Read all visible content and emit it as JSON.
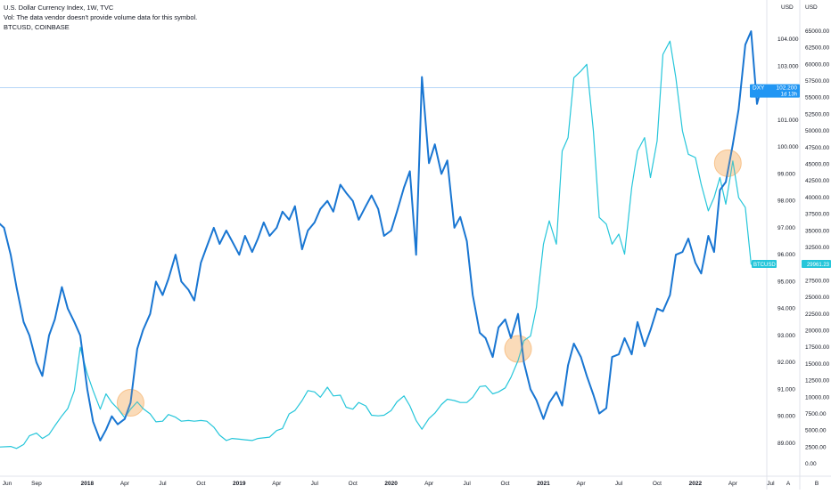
{
  "legend": {
    "line1": "U.S. Dollar Currency Index, 1W, TVC",
    "line2": "Vol: The data vendor doesn't provide volume data for this symbol.",
    "line3": "BTCUSD, COINBASE"
  },
  "colors": {
    "dxy": "#1976d2",
    "btc": "#26c6da",
    "dxy_tag": "#2196f3",
    "btc_tag": "#26c6da",
    "highlight": "#f6b26b",
    "axis_text": "#131722",
    "crosshair": "#9ec9f5"
  },
  "axis_tags": {
    "dxy_name": "DXY",
    "dxy_value": "102.200",
    "dxy_countdown": "1d 13h",
    "btc_name": "BTCUSD",
    "btc_value": "29961.23"
  },
  "scale_buttons": [
    "A",
    "B"
  ],
  "chart_data": {
    "type": "line",
    "title": "U.S. Dollar Currency Index, 1W, TVC",
    "x_tick_labels": [
      "Jun",
      "Sep",
      "2018",
      "Apr",
      "Jul",
      "Oct",
      "2019",
      "Apr",
      "Jul",
      "Oct",
      "2020",
      "Apr",
      "Jul",
      "Oct",
      "2021",
      "Apr",
      "Jul",
      "Oct",
      "2022",
      "Apr",
      "Jul"
    ],
    "x_range": [
      "2017-06",
      "2022-07"
    ],
    "axes": {
      "dxy": {
        "unit": "USD",
        "range": [
          88.6,
          104.8
        ],
        "ticks": [
          "104.000",
          "103.000",
          "102.000",
          "101.000",
          "100.000",
          "99.000",
          "98.000",
          "97.000",
          "96.000",
          "95.000",
          "94.000",
          "93.000",
          "92.000",
          "91.000",
          "90.000",
          "89.000"
        ]
      },
      "btc": {
        "unit": "USD",
        "range": [
          -2000,
          67000
        ],
        "ticks": [
          "65000.00",
          "62500.00",
          "60000.00",
          "57500.00",
          "55000.00",
          "52500.00",
          "50000.00",
          "47500.00",
          "45000.00",
          "42500.00",
          "40000.00",
          "37500.00",
          "35000.00",
          "32500.00",
          "30000.00",
          "27500.00",
          "25000.00",
          "22500.00",
          "20000.00",
          "17500.00",
          "15000.00",
          "12500.00",
          "10000.00",
          "7500.00",
          "5000.00",
          "2500.00",
          "0.00"
        ]
      }
    },
    "grid": false,
    "series": [
      {
        "name": "DXY",
        "axis": "dxy",
        "points": [
          [
            "2017-06",
            97.2
          ],
          [
            "2017-06-15",
            97.0
          ],
          [
            "2017-07",
            96.0
          ],
          [
            "2017-07-15",
            94.8
          ],
          [
            "2017-08",
            93.5
          ],
          [
            "2017-08-15",
            93.0
          ],
          [
            "2017-09",
            92.0
          ],
          [
            "2017-09-15",
            91.5
          ],
          [
            "2017-10",
            93.0
          ],
          [
            "2017-10-15",
            93.6
          ],
          [
            "2017-11",
            94.8
          ],
          [
            "2017-11-15",
            94.0
          ],
          [
            "2017-12",
            93.5
          ],
          [
            "2017-12-15",
            93.0
          ],
          [
            "2018-01",
            91.0
          ],
          [
            "2018-01-15",
            89.8
          ],
          [
            "2018-02",
            89.1
          ],
          [
            "2018-02-15",
            89.5
          ],
          [
            "2018-03",
            90.0
          ],
          [
            "2018-03-15",
            89.7
          ],
          [
            "2018-04",
            89.9
          ],
          [
            "2018-04-15",
            90.5
          ],
          [
            "2018-05",
            92.5
          ],
          [
            "2018-05-15",
            93.2
          ],
          [
            "2018-06",
            93.8
          ],
          [
            "2018-06-15",
            95.0
          ],
          [
            "2018-07",
            94.5
          ],
          [
            "2018-07-15",
            95.1
          ],
          [
            "2018-08",
            96.0
          ],
          [
            "2018-08-15",
            95.0
          ],
          [
            "2018-09",
            94.7
          ],
          [
            "2018-09-15",
            94.3
          ],
          [
            "2018-10",
            95.7
          ],
          [
            "2018-10-15",
            96.3
          ],
          [
            "2018-11",
            97.0
          ],
          [
            "2018-11-15",
            96.4
          ],
          [
            "2018-12",
            96.9
          ],
          [
            "2018-12-15",
            96.5
          ],
          [
            "2019-01",
            96.0
          ],
          [
            "2019-01-15",
            96.7
          ],
          [
            "2019-02",
            96.1
          ],
          [
            "2019-02-15",
            96.6
          ],
          [
            "2019-03",
            97.2
          ],
          [
            "2019-03-15",
            96.7
          ],
          [
            "2019-04",
            97.0
          ],
          [
            "2019-04-15",
            97.6
          ],
          [
            "2019-05",
            97.3
          ],
          [
            "2019-05-15",
            97.8
          ],
          [
            "2019-06",
            96.2
          ],
          [
            "2019-06-15",
            96.9
          ],
          [
            "2019-07",
            97.2
          ],
          [
            "2019-07-15",
            97.7
          ],
          [
            "2019-08",
            98.0
          ],
          [
            "2019-08-15",
            97.6
          ],
          [
            "2019-09",
            98.6
          ],
          [
            "2019-09-15",
            98.3
          ],
          [
            "2019-10",
            98.0
          ],
          [
            "2019-10-15",
            97.3
          ],
          [
            "2019-11",
            97.8
          ],
          [
            "2019-11-15",
            98.2
          ],
          [
            "2019-12",
            97.7
          ],
          [
            "2019-12-15",
            96.7
          ],
          [
            "2020-01",
            96.9
          ],
          [
            "2020-01-15",
            97.6
          ],
          [
            "2020-02",
            98.5
          ],
          [
            "2020-02-15",
            99.1
          ],
          [
            "2020-03",
            96.0
          ],
          [
            "2020-03-15",
            102.6
          ],
          [
            "2020-04",
            99.4
          ],
          [
            "2020-04-15",
            100.1
          ],
          [
            "2020-05",
            99.0
          ],
          [
            "2020-05-15",
            99.5
          ],
          [
            "2020-06",
            97.0
          ],
          [
            "2020-06-15",
            97.4
          ],
          [
            "2020-07",
            96.5
          ],
          [
            "2020-07-15",
            94.5
          ],
          [
            "2020-08",
            93.1
          ],
          [
            "2020-08-15",
            92.9
          ],
          [
            "2020-09",
            92.2
          ],
          [
            "2020-09-15",
            93.3
          ],
          [
            "2020-10",
            93.6
          ],
          [
            "2020-10-15",
            92.9
          ],
          [
            "2020-11",
            93.8
          ],
          [
            "2020-11-15",
            92.0
          ],
          [
            "2020-12",
            91.0
          ],
          [
            "2020-12-15",
            90.6
          ],
          [
            "2021-01",
            89.9
          ],
          [
            "2021-01-15",
            90.5
          ],
          [
            "2021-02",
            90.9
          ],
          [
            "2021-02-15",
            90.4
          ],
          [
            "2021-03",
            91.9
          ],
          [
            "2021-03-15",
            92.7
          ],
          [
            "2021-04",
            92.2
          ],
          [
            "2021-04-15",
            91.5
          ],
          [
            "2021-05",
            90.8
          ],
          [
            "2021-05-15",
            90.1
          ],
          [
            "2021-06",
            90.3
          ],
          [
            "2021-06-15",
            92.2
          ],
          [
            "2021-07",
            92.3
          ],
          [
            "2021-07-15",
            92.9
          ],
          [
            "2021-08",
            92.3
          ],
          [
            "2021-08-15",
            93.5
          ],
          [
            "2021-09",
            92.6
          ],
          [
            "2021-09-15",
            93.2
          ],
          [
            "2021-10",
            94.0
          ],
          [
            "2021-10-15",
            93.9
          ],
          [
            "2021-11",
            94.5
          ],
          [
            "2021-11-15",
            96.0
          ],
          [
            "2021-12",
            96.1
          ],
          [
            "2021-12-15",
            96.6
          ],
          [
            "2022-01",
            95.7
          ],
          [
            "2022-01-15",
            95.3
          ],
          [
            "2022-02",
            96.7
          ],
          [
            "2022-02-15",
            96.1
          ],
          [
            "2022-03",
            98.4
          ],
          [
            "2022-03-15",
            98.7
          ],
          [
            "2022-04",
            100.1
          ],
          [
            "2022-04-15",
            101.4
          ],
          [
            "2022-05",
            103.8
          ],
          [
            "2022-05-15",
            104.3
          ],
          [
            "2022-05-29",
            101.6
          ],
          [
            "2022-06-08",
            102.2
          ]
        ]
      },
      {
        "name": "BTCUSD",
        "axis": "btc",
        "points": [
          [
            "2017-06",
            2500
          ],
          [
            "2017-07",
            2600
          ],
          [
            "2017-07-15",
            2300
          ],
          [
            "2017-08",
            2900
          ],
          [
            "2017-08-15",
            4200
          ],
          [
            "2017-09",
            4600
          ],
          [
            "2017-09-15",
            3800
          ],
          [
            "2017-10",
            4400
          ],
          [
            "2017-10-15",
            5700
          ],
          [
            "2017-11",
            7200
          ],
          [
            "2017-11-15",
            8300
          ],
          [
            "2017-12",
            11000
          ],
          [
            "2017-12-15",
            17500
          ],
          [
            "2018-01",
            13500
          ],
          [
            "2018-01-15",
            11000
          ],
          [
            "2018-02",
            8200
          ],
          [
            "2018-02-15",
            10500
          ],
          [
            "2018-03",
            9200
          ],
          [
            "2018-03-15",
            8300
          ],
          [
            "2018-04",
            6900
          ],
          [
            "2018-04-15",
            8200
          ],
          [
            "2018-05",
            9300
          ],
          [
            "2018-05-15",
            8300
          ],
          [
            "2018-06",
            7500
          ],
          [
            "2018-06-15",
            6300
          ],
          [
            "2018-07",
            6400
          ],
          [
            "2018-07-15",
            7400
          ],
          [
            "2018-08",
            7000
          ],
          [
            "2018-08-15",
            6400
          ],
          [
            "2018-09",
            6500
          ],
          [
            "2018-09-15",
            6400
          ],
          [
            "2018-10",
            6500
          ],
          [
            "2018-10-15",
            6400
          ],
          [
            "2018-11",
            5500
          ],
          [
            "2018-11-15",
            4300
          ],
          [
            "2018-12",
            3500
          ],
          [
            "2018-12-15",
            3800
          ],
          [
            "2019-01",
            3700
          ],
          [
            "2019-01-15",
            3600
          ],
          [
            "2019-02",
            3500
          ],
          [
            "2019-02-15",
            3800
          ],
          [
            "2019-03",
            3900
          ],
          [
            "2019-03-15",
            4000
          ],
          [
            "2019-04",
            5000
          ],
          [
            "2019-04-15",
            5300
          ],
          [
            "2019-05",
            7500
          ],
          [
            "2019-05-15",
            8000
          ],
          [
            "2019-06",
            9500
          ],
          [
            "2019-06-15",
            11000
          ],
          [
            "2019-07",
            10800
          ],
          [
            "2019-07-15",
            10000
          ],
          [
            "2019-08",
            11500
          ],
          [
            "2019-08-15",
            10200
          ],
          [
            "2019-09",
            10300
          ],
          [
            "2019-09-15",
            8500
          ],
          [
            "2019-10",
            8200
          ],
          [
            "2019-10-15",
            9200
          ],
          [
            "2019-11",
            8700
          ],
          [
            "2019-11-15",
            7300
          ],
          [
            "2019-12",
            7200
          ],
          [
            "2019-12-15",
            7300
          ],
          [
            "2020-01",
            8000
          ],
          [
            "2020-01-15",
            9300
          ],
          [
            "2020-02",
            10200
          ],
          [
            "2020-02-15",
            8700
          ],
          [
            "2020-03",
            6500
          ],
          [
            "2020-03-15",
            5200
          ],
          [
            "2020-04",
            6800
          ],
          [
            "2020-04-15",
            7600
          ],
          [
            "2020-05",
            8900
          ],
          [
            "2020-05-15",
            9700
          ],
          [
            "2020-06",
            9500
          ],
          [
            "2020-06-15",
            9200
          ],
          [
            "2020-07",
            9200
          ],
          [
            "2020-07-15",
            10000
          ],
          [
            "2020-08",
            11600
          ],
          [
            "2020-08-15",
            11700
          ],
          [
            "2020-09",
            10500
          ],
          [
            "2020-09-15",
            10800
          ],
          [
            "2020-10",
            11400
          ],
          [
            "2020-10-15",
            13000
          ],
          [
            "2020-11",
            15500
          ],
          [
            "2020-11-15",
            18500
          ],
          [
            "2020-12",
            19200
          ],
          [
            "2020-12-15",
            23500
          ],
          [
            "2021-01",
            33000
          ],
          [
            "2021-01-15",
            36500
          ],
          [
            "2021-02",
            33000
          ],
          [
            "2021-02-15",
            47000
          ],
          [
            "2021-03",
            49000
          ],
          [
            "2021-03-15",
            58000
          ],
          [
            "2021-04",
            59000
          ],
          [
            "2021-04-15",
            60000
          ],
          [
            "2021-05",
            50000
          ],
          [
            "2021-05-15",
            37000
          ],
          [
            "2021-06",
            36000
          ],
          [
            "2021-06-15",
            33000
          ],
          [
            "2021-07",
            34500
          ],
          [
            "2021-07-15",
            31500
          ],
          [
            "2021-08",
            41500
          ],
          [
            "2021-08-15",
            47000
          ],
          [
            "2021-09",
            49000
          ],
          [
            "2021-09-15",
            43000
          ],
          [
            "2021-10",
            48500
          ],
          [
            "2021-10-15",
            61500
          ],
          [
            "2021-11",
            63500
          ],
          [
            "2021-11-15",
            58000
          ],
          [
            "2021-12",
            50000
          ],
          [
            "2021-12-15",
            46500
          ],
          [
            "2022-01",
            46000
          ],
          [
            "2022-01-15",
            42000
          ],
          [
            "2022-02",
            38000
          ],
          [
            "2022-02-15",
            40000
          ],
          [
            "2022-03",
            43000
          ],
          [
            "2022-03-15",
            39000
          ],
          [
            "2022-04",
            45500
          ],
          [
            "2022-04-15",
            40000
          ],
          [
            "2022-05",
            38500
          ],
          [
            "2022-05-15",
            30000
          ],
          [
            "2022-05-29",
            29500
          ],
          [
            "2022-06-08",
            29961.23
          ]
        ]
      }
    ],
    "highlights": [
      {
        "label": "",
        "date": "2018-04-15",
        "dxy": 90.5
      },
      {
        "label": "",
        "date": "2020-11-01",
        "dxy": 92.5
      },
      {
        "label": "",
        "date": "2022-03-20",
        "dxy": 99.4
      }
    ]
  }
}
